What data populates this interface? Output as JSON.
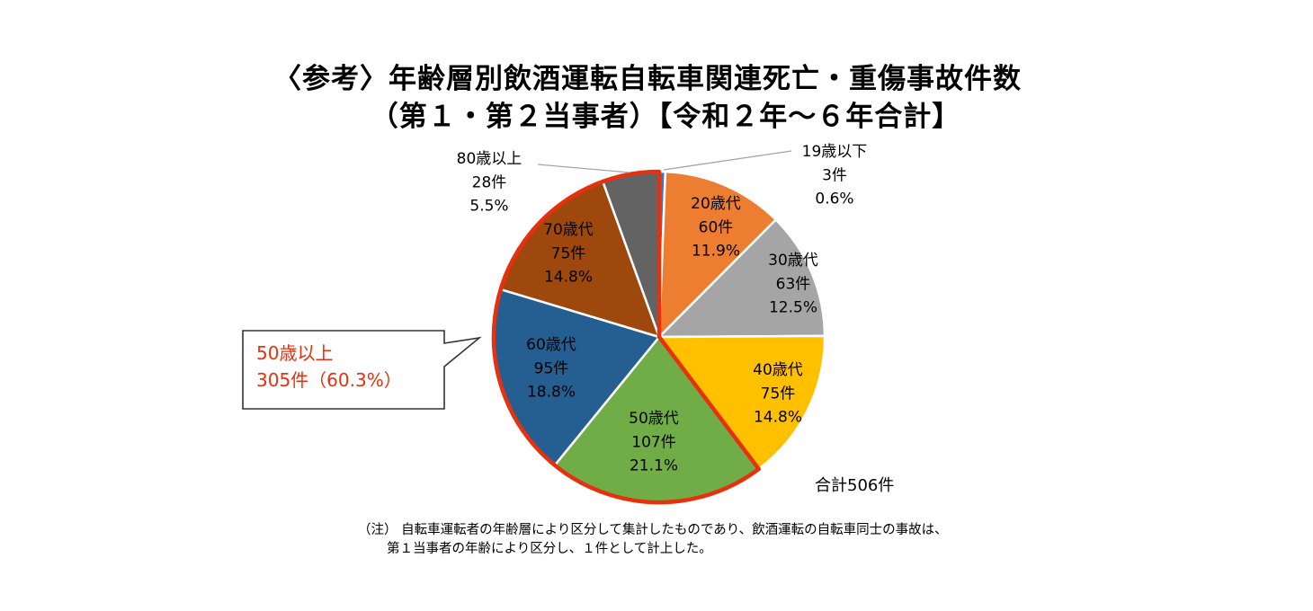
{
  "title_line_1": "〈参考〉年齢層別飲酒運転自転車関連死亡・重傷事故件数",
  "title_line_2": "（第１・第２当事者）【令和２年～６年合計】",
  "total_label": "合計506件",
  "callout": {
    "line1": "50歳以上",
    "line2": "305件（60.3%）",
    "border_color": "#333333",
    "text_color": "#e8300f"
  },
  "note_line_1": "（注） 自転車運転者の年齢層により区分して集計したものであり、飲酒運転の自転車同士の事故は、",
  "note_line_2": "第１当事者の年齢により区分し、１件として計上した。",
  "highlight_color": "#e8300f",
  "chart_data": {
    "type": "pie",
    "start": "top",
    "direction": "clockwise",
    "highlight_group": [
      "50歳代",
      "60歳代",
      "70歳代",
      "80歳以上"
    ],
    "slices": [
      {
        "label": "19歳以下",
        "count_label": "3件",
        "percent_label": "0.6%",
        "value": 3,
        "color": "#4472c4"
      },
      {
        "label": "20歳代",
        "count_label": "60件",
        "percent_label": "11.9%",
        "value": 60,
        "color": "#ed7d31"
      },
      {
        "label": "30歳代",
        "count_label": "63件",
        "percent_label": "12.5%",
        "value": 63,
        "color": "#a5a5a5"
      },
      {
        "label": "40歳代",
        "count_label": "75件",
        "percent_label": "14.8%",
        "value": 75,
        "color": "#ffc000"
      },
      {
        "label": "50歳代",
        "count_label": "107件",
        "percent_label": "21.1%",
        "value": 107,
        "color": "#70ad47"
      },
      {
        "label": "60歳代",
        "count_label": "95件",
        "percent_label": "18.8%",
        "value": 95,
        "color": "#255e91"
      },
      {
        "label": "70歳代",
        "count_label": "75件",
        "percent_label": "14.8%",
        "value": 75,
        "color": "#9e480e"
      },
      {
        "label": "80歳以上",
        "count_label": "28件",
        "percent_label": "5.5%",
        "value": 28,
        "color": "#636363"
      }
    ]
  }
}
